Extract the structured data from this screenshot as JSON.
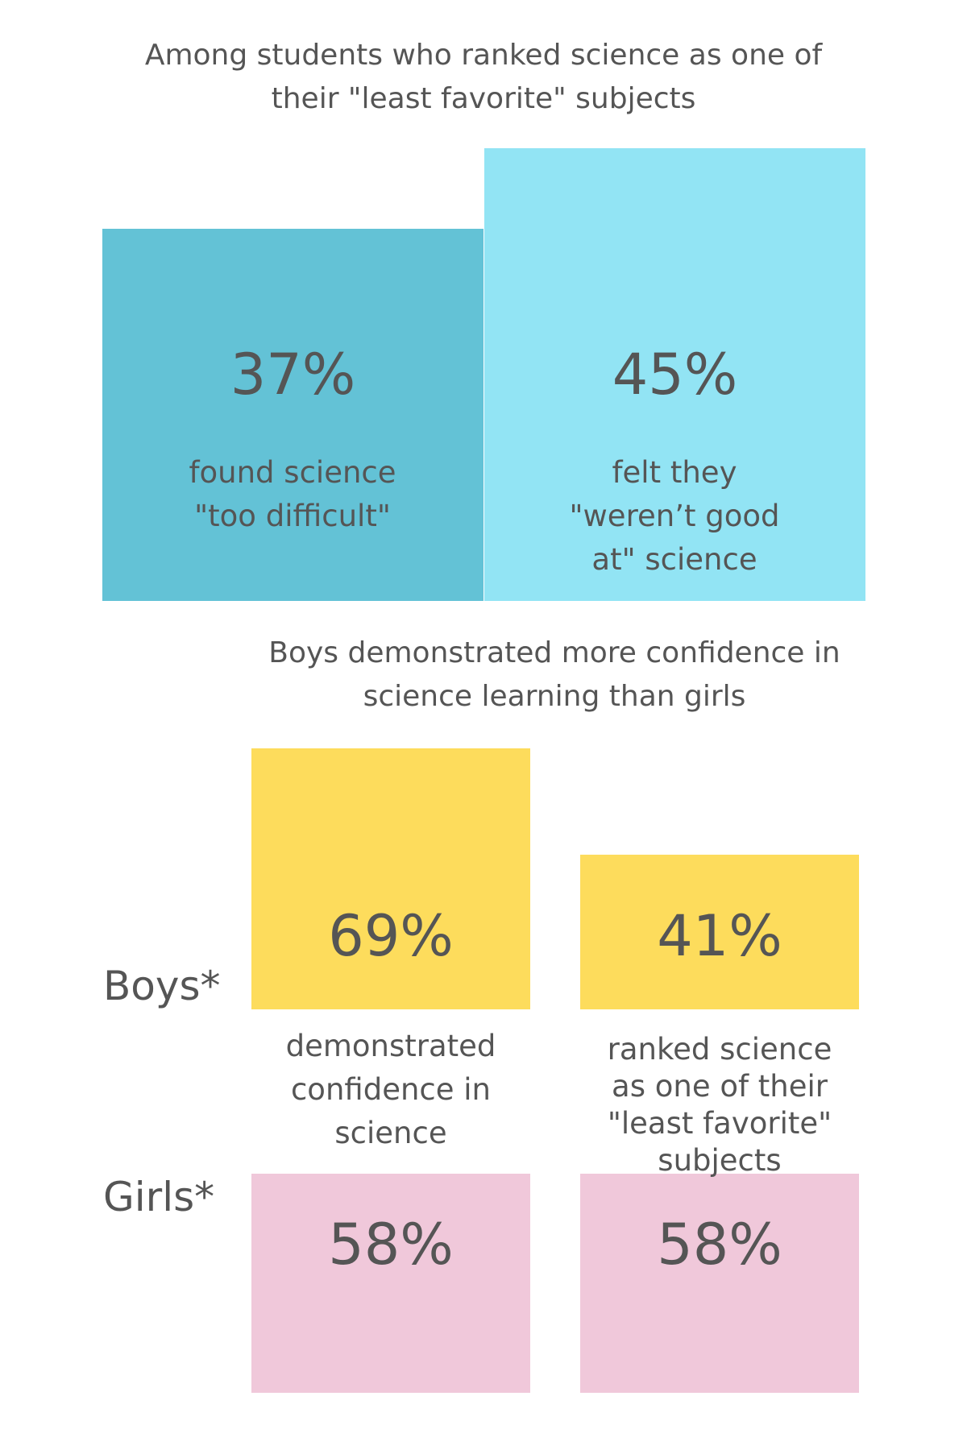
{
  "chart_data": [
    {
      "type": "bar",
      "title": "Among students who ranked science as one of their \"least favorite\" subjects",
      "categories": [
        "found science \"too difficult\"",
        "felt they \"weren’t good at\" science"
      ],
      "values": [
        37,
        45
      ],
      "value_labels": [
        "37%",
        "45%"
      ],
      "colors": [
        "#63c2d6",
        "#92e4f4"
      ]
    },
    {
      "type": "paired-bar",
      "title": "Boys demonstrated more confidence in science learning than girls",
      "categories": [
        "demonstrated confidence in science",
        "ranked science as one of their \"least favorite\" subjects"
      ],
      "series": [
        {
          "name": "Boys*",
          "color": "#fddc5c",
          "values": [
            69,
            41
          ],
          "value_labels": [
            "69%",
            "41%"
          ]
        },
        {
          "name": "Girls*",
          "color": "#f0c8da",
          "values": [
            58,
            58
          ],
          "value_labels": [
            "58%",
            "58%"
          ]
        }
      ]
    }
  ]
}
